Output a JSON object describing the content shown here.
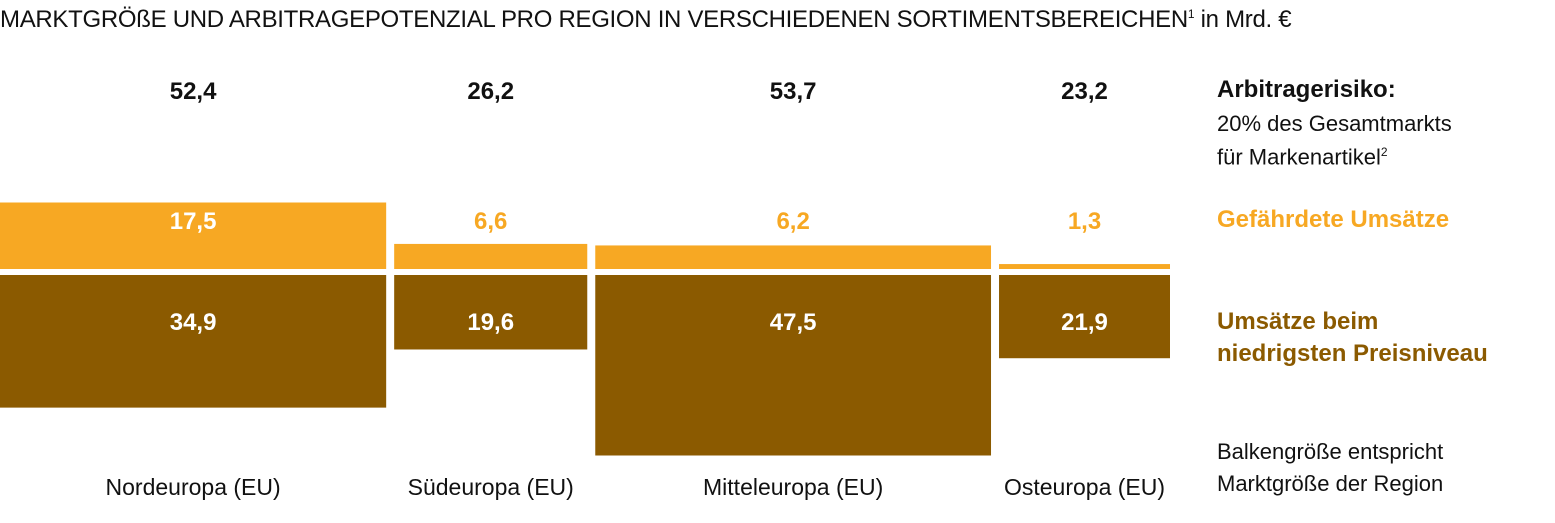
{
  "title": {
    "main": "MARKTGRÖßE UND ARBITRAGEPOTENZIAL PRO REGION IN VERSCHIEDENEN SORTIMENTSBEREICHEN",
    "footnote_mark": "1",
    "unit": " in Mrd. €"
  },
  "legend": {
    "risk_title": "Arbitragerisiko:",
    "risk_line1": "20% des Gesamtmarkts",
    "risk_line2": "für Markenartikel",
    "risk_footnote_mark": "2",
    "endangered": "Gefährdete Umsätze",
    "lowest_line1": "Umsätze beim",
    "lowest_line2": "niedrigsten Preisniveau",
    "note_line1": "Balkengröße entspricht",
    "note_line2": "Marktgröße der Region"
  },
  "colors": {
    "endangered": "#f7a823",
    "lowest": "#8b5a00",
    "text": "#111111"
  },
  "chart_data": {
    "type": "bar",
    "subtype": "marimekko",
    "unit": "Mrd. €",
    "categories": [
      "Nordeuropa (EU)",
      "Südeuropa (EU)",
      "Mitteleuropa (EU)",
      "Osteuropa (EU)"
    ],
    "totals": [
      52.4,
      26.2,
      53.7,
      23.2
    ],
    "total_labels": [
      "52,4",
      "26,2",
      "53,7",
      "23,2"
    ],
    "series": [
      {
        "name": "Gefährdete Umsätze",
        "values": [
          17.5,
          6.6,
          6.2,
          1.3
        ],
        "labels": [
          "17,5",
          "6,6",
          "6,2",
          "1,3"
        ]
      },
      {
        "name": "Umsätze beim niedrigsten Preisniveau",
        "values": [
          34.9,
          19.6,
          47.5,
          21.9
        ],
        "labels": [
          "34,9",
          "19,6",
          "47,5",
          "21,9"
        ]
      }
    ]
  }
}
